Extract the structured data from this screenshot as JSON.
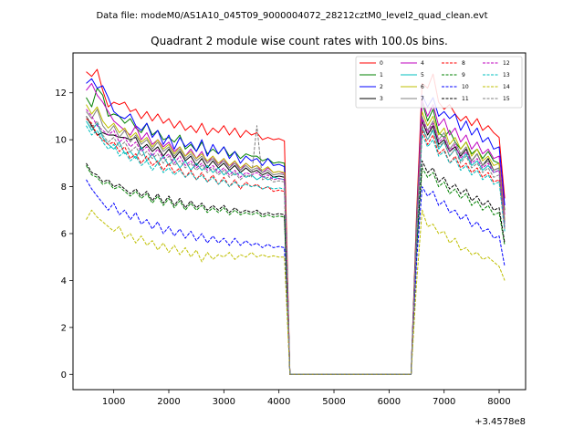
{
  "chart_data": {
    "type": "line",
    "suptitle": "Data file: modeM0/AS1A10_045T09_9000004072_28212cztM0_level2_quad_clean.evt",
    "title": "Quadrant 2 module wise count rates with 100.0s bins.",
    "xlabel": "",
    "ylabel": "",
    "x_offset_label": "+3.4578e8",
    "xlim": [
      260,
      8480
    ],
    "ylim": [
      -0.65,
      13.7
    ],
    "xticks": [
      1000,
      2000,
      3000,
      4000,
      5000,
      6000,
      7000,
      8000
    ],
    "yticks": [
      0,
      2,
      4,
      6,
      8,
      10,
      12
    ],
    "xtick_labels": [
      "1000",
      "2000",
      "3000",
      "4000",
      "5000",
      "6000",
      "7000",
      "8000"
    ],
    "ytick_labels": [
      "0",
      "2",
      "4",
      "6",
      "8",
      "10",
      "12"
    ],
    "legend_position": "upper-right",
    "x_segment1": {
      "start": 500,
      "step": 100,
      "count": 37
    },
    "x_gap": [
      4200,
      4300,
      4400,
      4500,
      4600,
      4700,
      4800,
      4900,
      5000,
      5100,
      5200,
      5300,
      5400,
      5500,
      5600,
      5700,
      5800,
      5900,
      6000,
      6100,
      6200,
      6300,
      6400
    ],
    "x_segment2": {
      "start": 6500,
      "step": 100,
      "count": 17
    },
    "series": [
      {
        "name": "0",
        "color": "#ff0000",
        "dash": false,
        "seg1": [
          12.9,
          12.7,
          13.0,
          12.1,
          11.4,
          11.6,
          11.5,
          11.6,
          11.2,
          11.3,
          10.9,
          11.2,
          10.8,
          11.1,
          10.7,
          10.9,
          10.5,
          10.8,
          10.4,
          10.6,
          10.3,
          10.7,
          10.2,
          10.5,
          10.3,
          10.6,
          10.2,
          10.5,
          10.1,
          10.4,
          10.2,
          10.3,
          10.0,
          10.1,
          10.0,
          10.05,
          9.95
        ],
        "seg2": [
          6.8,
          12.4,
          12.2,
          12.8,
          11.6,
          11.3,
          11.5,
          11.1,
          10.8,
          11.0,
          10.6,
          10.9,
          10.4,
          10.6,
          10.3,
          10.1,
          7.5
        ]
      },
      {
        "name": "1",
        "color": "#008000",
        "dash": false,
        "seg1": [
          11.8,
          11.4,
          12.2,
          11.9,
          11.0,
          11.1,
          11.0,
          10.7,
          10.9,
          10.5,
          10.3,
          10.7,
          10.2,
          10.4,
          10.0,
          10.1,
          9.9,
          10.2,
          9.6,
          9.8,
          9.5,
          9.9,
          9.4,
          9.6,
          9.4,
          9.7,
          9.3,
          9.5,
          9.2,
          9.4,
          9.3,
          9.3,
          9.1,
          9.2,
          9.0,
          9.05,
          9.0
        ],
        "seg2": [
          6.5,
          11.6,
          10.8,
          11.3,
          10.3,
          10.1,
          10.4,
          9.9,
          9.6,
          9.9,
          9.4,
          9.6,
          9.2,
          9.5,
          9.1,
          9.0,
          7.0
        ]
      },
      {
        "name": "2",
        "color": "#0000ff",
        "dash": false,
        "seg1": [
          12.4,
          12.6,
          12.2,
          12.3,
          11.8,
          11.2,
          11.0,
          10.9,
          11.1,
          10.6,
          10.4,
          10.7,
          10.1,
          10.4,
          9.8,
          10.2,
          9.6,
          10.1,
          9.7,
          9.9,
          9.5,
          10.0,
          9.3,
          9.8,
          9.4,
          9.7,
          9.2,
          9.5,
          9.0,
          9.3,
          9.1,
          9.2,
          8.9,
          9.2,
          8.9,
          8.95,
          8.85
        ],
        "seg2": [
          6.3,
          11.9,
          11.4,
          11.8,
          11.0,
          11.2,
          10.9,
          11.1,
          10.4,
          10.8,
          10.2,
          10.5,
          9.9,
          10.1,
          9.6,
          9.7,
          7.2
        ]
      },
      {
        "name": "3",
        "color": "#000000",
        "dash": false,
        "seg1": [
          11.0,
          10.6,
          10.2,
          10.3,
          10.2,
          10.2,
          10.1,
          10.1,
          10.0,
          10.1,
          9.6,
          9.8,
          9.5,
          9.7,
          9.3,
          9.6,
          9.2,
          9.5,
          9.1,
          9.3,
          8.9,
          9.2,
          8.8,
          9.1,
          8.8,
          9.0,
          8.7,
          8.9,
          8.6,
          8.8,
          8.6,
          8.7,
          8.5,
          8.6,
          8.4,
          8.45,
          8.4
        ],
        "seg2": [
          6.0,
          10.8,
          10.2,
          10.6,
          9.8,
          10.0,
          9.5,
          9.7,
          9.3,
          9.6,
          9.1,
          9.4,
          8.9,
          9.2,
          8.7,
          8.8,
          6.5
        ]
      },
      {
        "name": "4",
        "color": "#bf00bf",
        "dash": false,
        "seg1": [
          12.1,
          12.4,
          11.9,
          11.6,
          11.2,
          10.8,
          10.6,
          10.4,
          10.2,
          10.6,
          10.0,
          10.3,
          9.8,
          10.0,
          9.7,
          9.9,
          9.5,
          9.7,
          9.3,
          9.6,
          9.2,
          9.5,
          9.0,
          9.3,
          8.9,
          9.2,
          8.8,
          9.1,
          8.7,
          9.0,
          8.8,
          8.9,
          8.6,
          8.8,
          8.6,
          8.65,
          8.55
        ],
        "seg2": [
          6.2,
          11.7,
          11.0,
          11.5,
          10.6,
          10.9,
          10.2,
          10.5,
          9.9,
          10.2,
          9.6,
          9.9,
          9.4,
          9.6,
          9.2,
          9.3,
          6.8
        ]
      },
      {
        "name": "5",
        "color": "#00bfbf",
        "dash": false,
        "seg1": [
          10.8,
          10.4,
          10.7,
          10.1,
          9.8,
          9.6,
          9.9,
          9.4,
          9.5,
          9.2,
          9.7,
          9.1,
          9.4,
          9.0,
          9.3,
          8.9,
          9.2,
          8.8,
          9.1,
          8.7,
          9.0,
          8.7,
          8.9,
          8.6,
          8.8,
          8.5,
          8.7,
          8.5,
          8.6,
          8.4,
          8.5,
          8.3,
          8.45,
          8.3,
          8.4,
          8.35,
          8.3
        ],
        "seg2": [
          5.9,
          10.5,
          10.0,
          10.4,
          9.6,
          9.9,
          9.3,
          9.6,
          9.1,
          9.4,
          8.9,
          9.1,
          8.7,
          8.9,
          8.6,
          8.7,
          6.4
        ]
      },
      {
        "name": "6",
        "color": "#bfbf00",
        "dash": false,
        "seg1": [
          11.5,
          11.1,
          11.4,
          10.8,
          10.5,
          10.7,
          10.3,
          10.5,
          10.1,
          10.3,
          9.9,
          10.1,
          9.7,
          10.0,
          9.6,
          9.8,
          9.4,
          9.7,
          9.3,
          9.5,
          9.2,
          9.4,
          9.1,
          9.3,
          9.0,
          9.2,
          8.9,
          9.1,
          8.8,
          9.0,
          8.8,
          8.9,
          8.7,
          8.85,
          8.6,
          8.65,
          8.6
        ],
        "seg2": [
          6.1,
          11.2,
          10.6,
          11.0,
          10.2,
          10.5,
          9.8,
          10.1,
          9.6,
          9.9,
          9.3,
          9.6,
          9.1,
          9.3,
          8.9,
          9.0,
          6.6
        ]
      },
      {
        "name": "7",
        "color": "#808080",
        "dash": false,
        "seg1": [
          11.2,
          10.9,
          11.3,
          10.6,
          10.3,
          10.6,
          10.1,
          10.4,
          9.9,
          10.2,
          9.8,
          10.0,
          9.6,
          9.9,
          9.5,
          9.7,
          9.3,
          9.6,
          9.2,
          9.4,
          9.1,
          9.3,
          9.0,
          9.2,
          8.9,
          9.1,
          8.8,
          9.0,
          8.7,
          8.9,
          8.7,
          8.8,
          8.6,
          8.7,
          8.5,
          8.55,
          8.5
        ],
        "seg2": [
          6.0,
          11.0,
          10.4,
          10.8,
          10.0,
          10.3,
          9.6,
          9.9,
          9.4,
          9.7,
          9.1,
          9.4,
          8.9,
          9.1,
          8.7,
          8.8,
          6.5
        ]
      },
      {
        "name": "8",
        "color": "#ff0000",
        "dash": true,
        "seg1": [
          10.9,
          10.7,
          10.2,
          10.0,
          9.8,
          9.9,
          9.5,
          9.7,
          9.2,
          9.4,
          9.0,
          9.3,
          8.9,
          9.1,
          8.7,
          9.0,
          8.6,
          8.8,
          8.4,
          8.7,
          8.3,
          8.6,
          8.2,
          8.5,
          8.1,
          8.4,
          8.0,
          8.3,
          7.9,
          8.2,
          8.0,
          8.1,
          7.9,
          8.0,
          7.8,
          7.85,
          7.8
        ],
        "seg2": [
          5.7,
          10.4,
          9.8,
          10.2,
          9.4,
          9.6,
          9.0,
          9.3,
          8.8,
          9.0,
          8.6,
          8.8,
          8.4,
          8.6,
          8.2,
          8.3,
          6.2
        ]
      },
      {
        "name": "9",
        "color": "#008000",
        "dash": true,
        "seg1": [
          8.9,
          8.5,
          8.4,
          8.1,
          8.2,
          7.9,
          8.0,
          7.8,
          7.6,
          7.8,
          7.5,
          7.7,
          7.3,
          7.6,
          7.2,
          7.5,
          7.1,
          7.4,
          7.0,
          7.3,
          7.0,
          7.2,
          6.9,
          7.1,
          6.9,
          7.1,
          6.8,
          7.0,
          6.8,
          6.9,
          6.8,
          6.9,
          6.7,
          6.8,
          6.7,
          6.75,
          6.7
        ],
        "seg2": [
          5.3,
          8.8,
          8.4,
          8.6,
          8.0,
          8.2,
          7.7,
          7.9,
          7.5,
          7.7,
          7.2,
          7.4,
          7.0,
          7.2,
          6.8,
          6.9,
          5.5
        ]
      },
      {
        "name": "10",
        "color": "#0000ff",
        "dash": true,
        "seg1": [
          8.3,
          7.9,
          7.6,
          7.3,
          7.0,
          7.3,
          6.8,
          7.0,
          6.6,
          6.9,
          6.4,
          6.6,
          6.2,
          6.5,
          6.0,
          6.3,
          5.9,
          6.2,
          5.8,
          6.1,
          5.7,
          6.0,
          5.6,
          5.9,
          5.6,
          5.8,
          5.5,
          5.8,
          5.5,
          5.7,
          5.5,
          5.6,
          5.4,
          5.55,
          5.4,
          5.45,
          5.4
        ],
        "seg2": [
          4.8,
          8.0,
          7.6,
          7.8,
          7.2,
          7.4,
          6.9,
          7.0,
          6.6,
          6.8,
          6.3,
          6.5,
          6.1,
          6.2,
          5.8,
          5.9,
          4.6
        ]
      },
      {
        "name": "11",
        "color": "#000000",
        "dash": true,
        "seg1": [
          9.0,
          8.6,
          8.5,
          8.2,
          8.3,
          8.0,
          8.1,
          7.9,
          7.7,
          7.9,
          7.6,
          7.8,
          7.4,
          7.7,
          7.3,
          7.6,
          7.2,
          7.5,
          7.1,
          7.4,
          7.1,
          7.3,
          7.0,
          7.2,
          7.0,
          7.2,
          6.9,
          7.1,
          6.9,
          7.0,
          6.9,
          7.0,
          6.8,
          6.9,
          6.8,
          6.85,
          6.8
        ],
        "seg2": [
          5.4,
          9.1,
          8.6,
          8.8,
          8.2,
          8.4,
          7.9,
          8.1,
          7.7,
          7.9,
          7.4,
          7.6,
          7.2,
          7.4,
          7.0,
          7.1,
          5.6
        ]
      },
      {
        "name": "12",
        "color": "#bf00bf",
        "dash": true,
        "seg1": [
          11.3,
          11.0,
          10.6,
          10.4,
          10.2,
          10.4,
          9.9,
          10.1,
          9.7,
          9.9,
          9.5,
          9.7,
          9.3,
          9.6,
          9.2,
          9.4,
          9.0,
          9.3,
          8.9,
          9.1,
          8.8,
          9.0,
          8.7,
          8.9,
          8.6,
          8.8,
          8.5,
          8.7,
          8.4,
          8.6,
          8.5,
          8.6,
          8.4,
          8.5,
          8.3,
          8.35,
          8.3
        ],
        "seg2": [
          5.8,
          10.9,
          10.3,
          10.7,
          9.9,
          10.1,
          9.5,
          9.8,
          9.2,
          9.5,
          9.0,
          9.2,
          8.8,
          9.0,
          8.6,
          8.7,
          6.3
        ]
      },
      {
        "name": "13",
        "color": "#00bfbf",
        "dash": true,
        "seg1": [
          10.6,
          10.2,
          10.4,
          9.9,
          9.6,
          9.8,
          9.3,
          9.5,
          9.1,
          9.3,
          8.9,
          9.1,
          8.7,
          9.0,
          8.6,
          8.8,
          8.5,
          8.7,
          8.4,
          8.6,
          8.3,
          8.5,
          8.2,
          8.4,
          8.1,
          8.3,
          8.0,
          8.2,
          8.0,
          8.1,
          8.0,
          8.05,
          7.9,
          8.0,
          7.9,
          7.95,
          7.9
        ],
        "seg2": [
          5.6,
          10.2,
          9.7,
          10.0,
          9.3,
          9.5,
          9.0,
          9.2,
          8.7,
          8.9,
          8.5,
          8.7,
          8.3,
          8.5,
          8.1,
          8.2,
          6.1
        ]
      },
      {
        "name": "14",
        "color": "#bfbf00",
        "dash": true,
        "seg1": [
          6.6,
          7.0,
          6.7,
          6.5,
          6.3,
          6.1,
          6.3,
          5.8,
          6.0,
          5.6,
          5.9,
          5.5,
          5.7,
          5.3,
          5.6,
          5.2,
          5.5,
          5.1,
          5.4,
          5.0,
          5.3,
          4.8,
          5.2,
          4.9,
          5.1,
          5.0,
          5.2,
          4.9,
          5.1,
          5.0,
          5.2,
          5.0,
          5.1,
          5.0,
          5.05,
          5.0,
          5.0
        ],
        "seg2": [
          3.9,
          7.0,
          6.3,
          6.4,
          6.0,
          6.1,
          5.6,
          5.8,
          5.3,
          5.4,
          5.1,
          5.2,
          4.9,
          5.0,
          4.8,
          4.6,
          4.0
        ]
      },
      {
        "name": "15",
        "color": "#808080",
        "dash": true,
        "seg1": [
          11.0,
          10.5,
          10.8,
          10.2,
          9.9,
          10.1,
          9.7,
          9.9,
          9.5,
          9.7,
          9.3,
          9.5,
          9.2,
          9.4,
          9.0,
          9.3,
          8.9,
          9.1,
          8.8,
          9.0,
          8.7,
          8.9,
          8.6,
          8.8,
          8.5,
          8.7,
          8.4,
          8.6,
          8.3,
          8.5,
          8.4,
          10.6,
          8.3,
          8.4,
          8.2,
          8.25,
          8.2
        ],
        "seg2": [
          5.9,
          10.6,
          10.0,
          10.5,
          9.7,
          9.9,
          9.3,
          9.6,
          9.0,
          9.3,
          8.8,
          9.0,
          8.6,
          8.8,
          8.4,
          8.5,
          6.2
        ]
      }
    ]
  }
}
